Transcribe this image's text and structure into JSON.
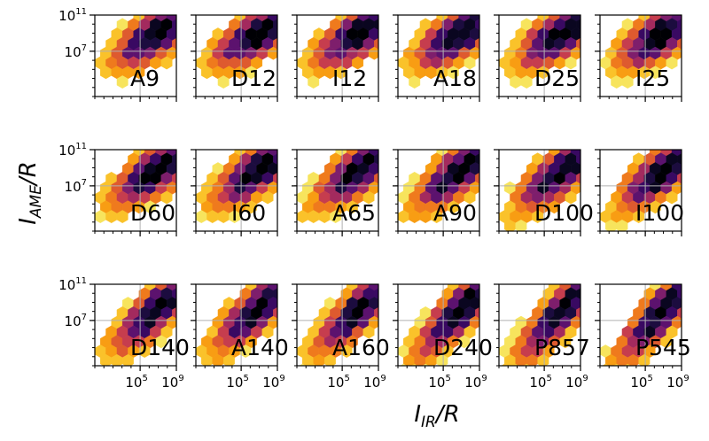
{
  "chart_data": {
    "type": "heatmap",
    "subtype": "hexbin-grid",
    "xlabel": {
      "main": "I",
      "sub": "IR",
      "rest": "/R"
    },
    "ylabel": {
      "main": "I",
      "sub": "AME",
      "rest": "/R"
    },
    "x_scale": "log",
    "y_scale": "log",
    "xlim": [
      1,
      1000000000
    ],
    "ylim": [
      100,
      100000000000
    ],
    "x_ticks": [
      {
        "base": "10",
        "exp": "5",
        "value": 100000
      },
      {
        "base": "10",
        "exp": "9",
        "value": 1000000000
      }
    ],
    "y_ticks": [
      {
        "base": "10",
        "exp": "7",
        "value": 10000000
      },
      {
        "base": "10",
        "exp": "11",
        "value": 100000000000
      }
    ],
    "grid": true,
    "grid_lines": {
      "x": 100000,
      "y": 10000000
    },
    "colormap": "inferno_r",
    "rows": 3,
    "cols": 6,
    "panels": [
      {
        "label": "A9",
        "trend": 0.55,
        "center": [
          7.0,
          9.0
        ]
      },
      {
        "label": "D12",
        "trend": 0.55,
        "center": [
          7.0,
          9.0
        ]
      },
      {
        "label": "I12",
        "trend": 0.55,
        "center": [
          7.0,
          9.0
        ]
      },
      {
        "label": "A18",
        "trend": 0.55,
        "center": [
          7.0,
          9.0
        ]
      },
      {
        "label": "D25",
        "trend": 0.55,
        "center": [
          7.0,
          9.0
        ]
      },
      {
        "label": "I25",
        "trend": 0.55,
        "center": [
          7.0,
          9.0
        ]
      },
      {
        "label": "D60",
        "trend": 0.6,
        "center": [
          7.0,
          8.8
        ]
      },
      {
        "label": "I60",
        "trend": 0.6,
        "center": [
          7.0,
          8.8
        ]
      },
      {
        "label": "A65",
        "trend": 0.65,
        "center": [
          7.0,
          8.8
        ]
      },
      {
        "label": "A90",
        "trend": 0.7,
        "center": [
          7.0,
          8.8
        ]
      },
      {
        "label": "D100",
        "trend": 0.7,
        "center": [
          7.0,
          8.6
        ]
      },
      {
        "label": "I100",
        "trend": 0.7,
        "center": [
          7.0,
          8.6
        ]
      },
      {
        "label": "D140",
        "trend": 0.8,
        "center": [
          7.0,
          8.4
        ]
      },
      {
        "label": "A140",
        "trend": 0.8,
        "center": [
          7.0,
          8.4
        ]
      },
      {
        "label": "A160",
        "trend": 0.85,
        "center": [
          7.0,
          8.3
        ]
      },
      {
        "label": "D240",
        "trend": 0.9,
        "center": [
          7.0,
          8.2
        ]
      },
      {
        "label": "P857",
        "trend": 0.95,
        "center": [
          7.0,
          8.1
        ]
      },
      {
        "label": "P545",
        "trend": 0.95,
        "center": [
          7.0,
          8.1
        ]
      }
    ]
  }
}
